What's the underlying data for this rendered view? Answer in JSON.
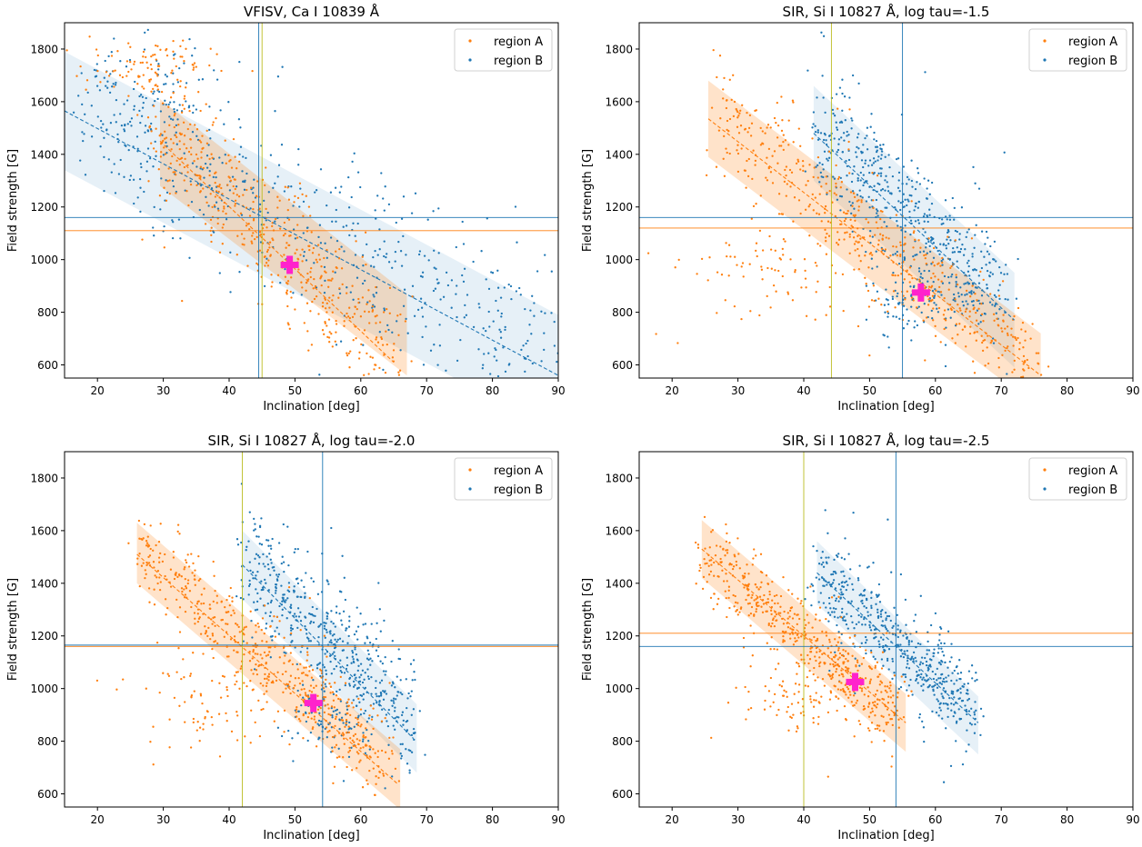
{
  "chart_data": [
    {
      "type": "scatter",
      "title": "VFISV, Ca I 10839 Å",
      "xlabel": "Inclination [deg]",
      "ylabel": "Field strength [G]",
      "xlim": [
        15,
        90
      ],
      "ylim": [
        550,
        1900
      ],
      "xticks": [
        20,
        30,
        40,
        50,
        60,
        70,
        80,
        90
      ],
      "yticks": [
        600,
        800,
        1000,
        1200,
        1400,
        1600,
        1800
      ],
      "legend": [
        "region A",
        "region B"
      ],
      "legend_loc": "upper right",
      "series": [
        {
          "name": "region A",
          "color": "#ff7f0e",
          "mean_x": 45.0,
          "mean_y": 1110,
          "band": {
            "x0": 29.5,
            "x1": 67,
            "lo0": 1280,
            "hi0": 1610,
            "lo1": 560,
            "hi1": 870
          },
          "fit": {
            "x0": 29.5,
            "y0": 1450,
            "x1": 65,
            "y1": 610
          },
          "cloud": {
            "x0": 28,
            "x1": 66,
            "y0": 1530,
            "y1": 620,
            "spread": 115,
            "extra": [
              [
                27,
                1740,
                6,
                60,
                40
              ]
            ]
          }
        },
        {
          "name": "region B",
          "color": "#1f77b4",
          "mean_x": 44.5,
          "mean_y": 1160,
          "band": {
            "x0": 15,
            "x1": 90,
            "lo0": 1340,
            "hi0": 1790,
            "lo1": 340,
            "hi1": 790
          },
          "fit": {
            "x0": 15,
            "y0": 1565,
            "x1": 90,
            "y1": 560
          },
          "cloud": {
            "x0": 17,
            "x1": 89,
            "y0": 1570,
            "y1": 650,
            "spread": 160,
            "extra": [
              [
                28,
                1620,
                5,
                110,
                120
              ]
            ]
          }
        }
      ],
      "marker": {
        "x": 49.2,
        "y": 980,
        "color": "#ff22cc"
      }
    },
    {
      "type": "scatter",
      "title": "SIR, Si I 10827 Å, log tau=-1.5",
      "xlabel": "Inclination [deg]",
      "ylabel": "Field strength [G]",
      "xlim": [
        15,
        90
      ],
      "ylim": [
        550,
        1900
      ],
      "xticks": [
        20,
        30,
        40,
        50,
        60,
        70,
        80,
        90
      ],
      "yticks": [
        600,
        800,
        1000,
        1200,
        1400,
        1600,
        1800
      ],
      "legend": [
        "region A",
        "region B"
      ],
      "legend_loc": "upper right",
      "series": [
        {
          "name": "region A",
          "color": "#ff7f0e",
          "mean_x": 44.2,
          "mean_y": 1120,
          "band": {
            "x0": 25.5,
            "x1": 76,
            "lo0": 1390,
            "hi0": 1680,
            "lo1": 430,
            "hi1": 720
          },
          "fit": {
            "x0": 25.5,
            "y0": 1535,
            "x1": 76,
            "y1": 560
          },
          "cloud": {
            "x0": 27,
            "x1": 75,
            "y0": 1560,
            "y1": 590,
            "spread": 95,
            "extra": [
              [
                36,
                950,
                8,
                90,
                110
              ]
            ]
          }
        },
        {
          "name": "region B",
          "color": "#1f77b4",
          "mean_x": 55.0,
          "mean_y": 1160,
          "band": {
            "x0": 41.5,
            "x1": 72,
            "lo0": 1300,
            "hi0": 1660,
            "lo1": 590,
            "hi1": 950
          },
          "fit": {
            "x0": 41.5,
            "y0": 1480,
            "x1": 72,
            "y1": 770
          },
          "cloud": {
            "x0": 42,
            "x1": 70,
            "y0": 1480,
            "y1": 850,
            "spread": 120,
            "extra": [
              [
                56,
                850,
                3,
                60,
                90
              ]
            ]
          }
        }
      ],
      "marker": {
        "x": 57.8,
        "y": 875,
        "color": "#ff22cc"
      }
    },
    {
      "type": "scatter",
      "title": "SIR, Si I 10827 Å, log tau=-2.0",
      "xlabel": "Inclination [deg]",
      "ylabel": "Field strength [G]",
      "xlim": [
        15,
        90
      ],
      "ylim": [
        550,
        1900
      ],
      "xticks": [
        20,
        30,
        40,
        50,
        60,
        70,
        80,
        90
      ],
      "yticks": [
        600,
        800,
        1000,
        1200,
        1400,
        1600,
        1800
      ],
      "legend": [
        "region A",
        "region B"
      ],
      "legend_loc": "upper right",
      "series": [
        {
          "name": "region A",
          "color": "#ff7f0e",
          "mean_x": 42.0,
          "mean_y": 1160,
          "band": {
            "x0": 26,
            "x1": 66,
            "lo0": 1400,
            "hi0": 1630,
            "lo1": 540,
            "hi1": 770
          },
          "fit": {
            "x0": 26,
            "y0": 1510,
            "x1": 65.5,
            "y1": 640
          },
          "cloud": {
            "x0": 26.5,
            "x1": 64,
            "y0": 1530,
            "y1": 720,
            "spread": 75,
            "extra": [
              [
                38,
                950,
                7,
                90,
                100
              ]
            ]
          }
        },
        {
          "name": "region B",
          "color": "#1f77b4",
          "mean_x": 54.2,
          "mean_y": 1165,
          "band": {
            "x0": 42,
            "x1": 68.5,
            "lo0": 1340,
            "hi0": 1600,
            "lo1": 680,
            "hi1": 940
          },
          "fit": {
            "x0": 42,
            "y0": 1470,
            "x1": 68,
            "y1": 810
          },
          "cloud": {
            "x0": 42.5,
            "x1": 68,
            "y0": 1480,
            "y1": 870,
            "spread": 115,
            "extra": [
              [
                55,
                880,
                3,
                60,
                80
              ]
            ]
          }
        }
      ],
      "marker": {
        "x": 52.8,
        "y": 945,
        "color": "#ff22cc"
      }
    },
    {
      "type": "scatter",
      "title": "SIR, Si I 10827 Å, log tau=-2.5",
      "xlabel": "Inclination [deg]",
      "ylabel": "Field strength [G]",
      "xlim": [
        15,
        90
      ],
      "ylim": [
        550,
        1900
      ],
      "xticks": [
        20,
        30,
        40,
        50,
        60,
        70,
        80,
        90
      ],
      "yticks": [
        600,
        800,
        1000,
        1200,
        1400,
        1600,
        1800
      ],
      "legend": [
        "region A",
        "region B"
      ],
      "legend_loc": "upper right",
      "series": [
        {
          "name": "region A",
          "color": "#ff7f0e",
          "mean_x": 40.0,
          "mean_y": 1210,
          "band": {
            "x0": 24.5,
            "x1": 55.5,
            "lo0": 1420,
            "hi0": 1640,
            "lo1": 760,
            "hi1": 980
          },
          "fit": {
            "x0": 24.5,
            "y0": 1530,
            "x1": 55.5,
            "y1": 870
          },
          "cloud": {
            "x0": 25,
            "x1": 55,
            "y0": 1500,
            "y1": 890,
            "spread": 70,
            "extra": [
              [
                40,
                960,
                6,
                60,
                70
              ]
            ]
          }
        },
        {
          "name": "region B",
          "color": "#1f77b4",
          "mean_x": 54.0,
          "mean_y": 1160,
          "band": {
            "x0": 42,
            "x1": 66.5,
            "lo0": 1320,
            "hi0": 1560,
            "lo1": 750,
            "hi1": 970
          },
          "fit": {
            "x0": 42,
            "y0": 1440,
            "x1": 66.5,
            "y1": 870
          },
          "cloud": {
            "x0": 42.5,
            "x1": 66,
            "y0": 1430,
            "y1": 920,
            "spread": 80,
            "extra": []
          }
        }
      ],
      "marker": {
        "x": 47.8,
        "y": 1025,
        "color": "#ff22cc"
      }
    }
  ]
}
